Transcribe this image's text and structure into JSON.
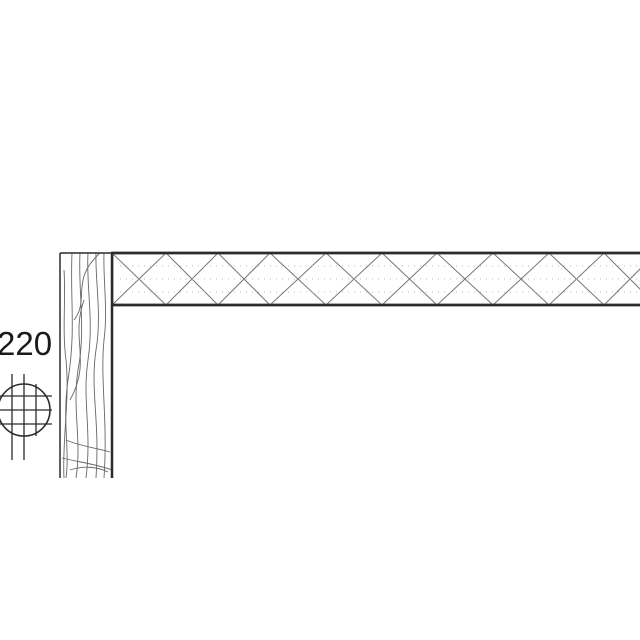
{
  "drawing": {
    "dimension_label": "220",
    "elements": [
      {
        "name": "timber-post-section",
        "hatch": "wood-grain"
      },
      {
        "name": "insulated-panel-section",
        "hatch": "cross-braced-insulation"
      },
      {
        "name": "section-marker-icon",
        "symbol": "circle-grid"
      }
    ],
    "colors": {
      "line": "#2b2b2b",
      "hatch": "#777777",
      "background": "#ffffff"
    }
  }
}
